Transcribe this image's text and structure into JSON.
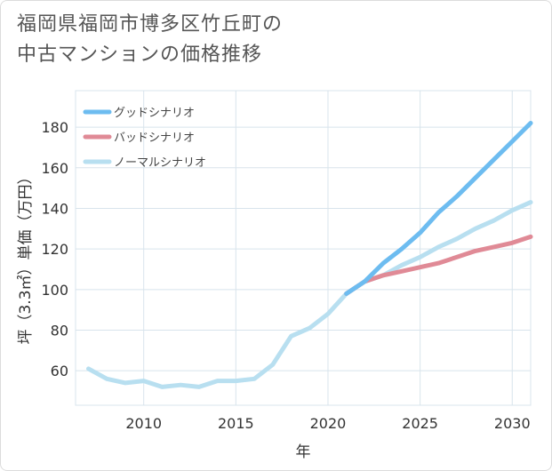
{
  "title_lines": [
    "福岡県福岡市博多区竹丘町の",
    "中古マンションの価格推移"
  ],
  "chart_data": {
    "type": "line",
    "title": "福岡県福岡市博多区竹丘町の中古マンションの価格推移",
    "xlabel": "年",
    "ylabel": "坪（3.3㎡）単価（万円）",
    "xlim": [
      2006.3,
      2031.0
    ],
    "ylim": [
      43,
      198
    ],
    "x_ticks": [
      2010,
      2015,
      2020,
      2025,
      2030
    ],
    "y_ticks": [
      60,
      80,
      100,
      120,
      140,
      160,
      180
    ],
    "grid": true,
    "legend_position": "top-left",
    "series": [
      {
        "name": "グッドシナリオ",
        "color": "#6dbcf0",
        "x": [
          2021,
          2022,
          2023,
          2024,
          2025,
          2026,
          2027,
          2028,
          2029,
          2030,
          2031
        ],
        "y": [
          98,
          104,
          113,
          120,
          128,
          138,
          146,
          155,
          164,
          173,
          182
        ]
      },
      {
        "name": "バッドシナリオ",
        "color": "#e08a96",
        "x": [
          2021,
          2022,
          2023,
          2024,
          2025,
          2026,
          2027,
          2028,
          2029,
          2030,
          2031
        ],
        "y": [
          98,
          104,
          107,
          109,
          111,
          113,
          116,
          119,
          121,
          123,
          126
        ]
      },
      {
        "name": "ノーマルシナリオ",
        "color": "#b8dff0",
        "x": [
          2007,
          2008,
          2009,
          2010,
          2011,
          2012,
          2013,
          2014,
          2015,
          2016,
          2017,
          2018,
          2019,
          2020,
          2021,
          2022,
          2023,
          2024,
          2025,
          2026,
          2027,
          2028,
          2029,
          2030,
          2031
        ],
        "y": [
          61,
          56,
          54,
          55,
          52,
          53,
          52,
          55,
          55,
          56,
          63,
          77,
          81,
          88,
          98,
          104,
          107,
          112,
          116,
          121,
          125,
          130,
          134,
          139,
          143
        ]
      }
    ]
  }
}
